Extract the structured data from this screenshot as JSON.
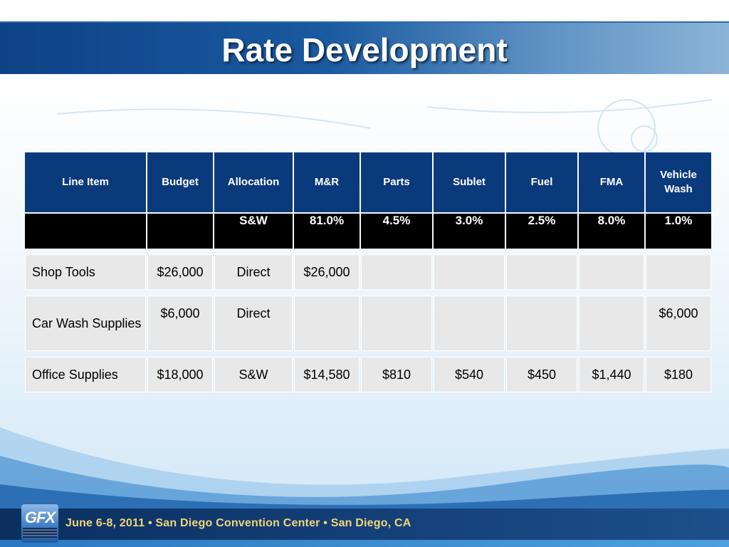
{
  "slide": {
    "title": "Rate Development"
  },
  "table": {
    "headers": [
      "Line Item",
      "Budget",
      "Allocation",
      "M&R",
      "Parts",
      "Sublet",
      "Fuel",
      "FMA",
      "Vehicle Wash"
    ],
    "percent_row": [
      "",
      "",
      "S&W",
      "81.0%",
      "4.5%",
      "3.0%",
      "2.5%",
      "8.0%",
      "1.0%"
    ],
    "rows": [
      [
        "Shop Tools",
        "$26,000",
        "Direct",
        "$26,000",
        "",
        "",
        "",
        "",
        ""
      ],
      [
        "Car Wash Supplies",
        "$6,000",
        "Direct",
        "",
        "",
        "",
        "",
        "",
        "$6,000"
      ],
      [
        "Office Supplies",
        "$18,000",
        "S&W",
        "$14,580",
        "$810",
        "$540",
        "$450",
        "$1,440",
        "$180"
      ]
    ]
  },
  "footer": {
    "logo_text": "GFX",
    "event_text": "June 6-8, 2011 • San Diego Convention Center • San Diego, CA"
  },
  "colors": {
    "title_bar": "#0e4287",
    "header_fill": "#0b3a7c",
    "percent_row_fill": "#000000",
    "body_cell_fill": "#e8e8e8",
    "footer_text": "#f2d57a"
  }
}
